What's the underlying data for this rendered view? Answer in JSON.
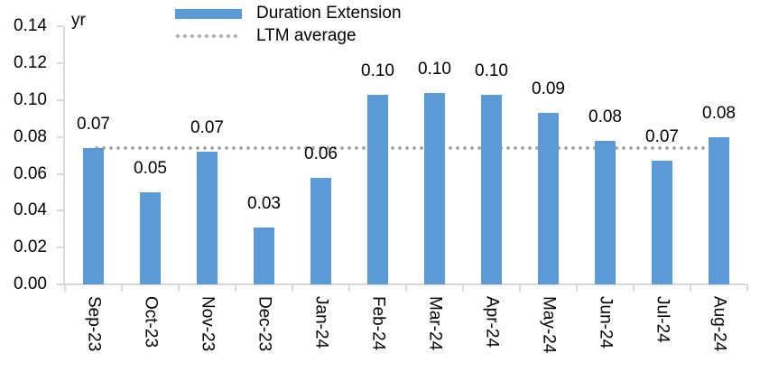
{
  "chart_data": {
    "type": "bar",
    "title": "",
    "unit_label": "yr",
    "categories": [
      "Sep-23",
      "Oct-23",
      "Nov-23",
      "Dec-23",
      "Jan-24",
      "Feb-24",
      "Mar-24",
      "Apr-24",
      "May-24",
      "Jun-24",
      "Jul-24",
      "Aug-24"
    ],
    "series": [
      {
        "name": "Duration Extension",
        "color": "#5B9BD5",
        "values": [
          0.074,
          0.05,
          0.072,
          0.031,
          0.058,
          0.103,
          0.104,
          0.103,
          0.093,
          0.078,
          0.067,
          0.08
        ],
        "data_labels": [
          "0.07",
          "0.05",
          "0.07",
          "0.03",
          "0.06",
          "0.10",
          "0.10",
          "0.10",
          "0.09",
          "0.08",
          "0.07",
          "0.08"
        ]
      }
    ],
    "reference_line": {
      "name": "LTM average",
      "value": 0.074,
      "color": "#ABABAB",
      "style": "dotted"
    },
    "ylim": [
      0,
      0.14
    ],
    "ytick_labels": [
      "0.00",
      "0.02",
      "0.04",
      "0.06",
      "0.08",
      "0.10",
      "0.12",
      "0.14"
    ],
    "grid": false,
    "legend_position": "top-center",
    "axis_color": "#D9D9D9",
    "text_color": "#000000"
  }
}
